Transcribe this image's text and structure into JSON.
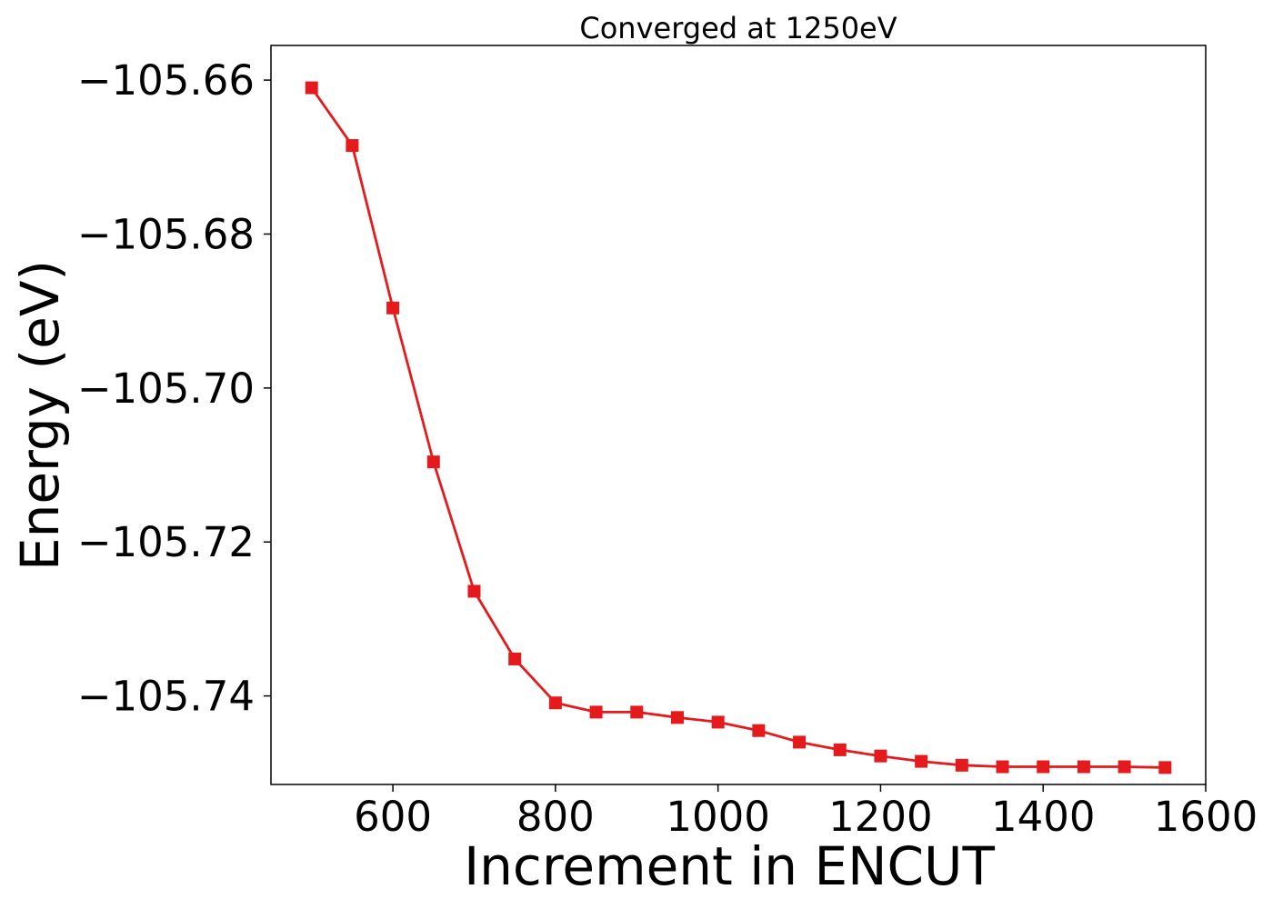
{
  "chart_data": {
    "type": "line",
    "title": "Converged at 1250eV",
    "xlabel": "Increment in ENCUT",
    "ylabel": "Energy (eV)",
    "xlim": [
      450,
      1600
    ],
    "ylim": [
      -105.7515,
      -105.6555
    ],
    "x_ticks": [
      600,
      800,
      1000,
      1200,
      1400,
      1600
    ],
    "y_ticks": [
      -105.66,
      -105.68,
      -105.7,
      -105.72,
      -105.74
    ],
    "x_tick_labels": [
      "600",
      "800",
      "1000",
      "1200",
      "1400",
      "1600"
    ],
    "y_tick_labels": [
      "−105.66",
      "−105.68",
      "−105.70",
      "−105.72",
      "−105.74"
    ],
    "grid": false,
    "series": [
      {
        "color": "#e41a1c",
        "marker": "square",
        "x": [
          500,
          550,
          600,
          650,
          700,
          750,
          800,
          850,
          900,
          950,
          1000,
          1050,
          1100,
          1150,
          1200,
          1250,
          1300,
          1350,
          1400,
          1450,
          1500,
          1550
        ],
        "y": [
          -105.661,
          -105.6685,
          -105.6896,
          -105.7096,
          -105.7264,
          -105.7352,
          -105.7409,
          -105.7421,
          -105.7421,
          -105.7428,
          -105.7434,
          -105.7445,
          -105.746,
          -105.747,
          -105.7478,
          -105.7485,
          -105.749,
          -105.7492,
          -105.7492,
          -105.7492,
          -105.7492,
          -105.7493
        ]
      }
    ]
  }
}
